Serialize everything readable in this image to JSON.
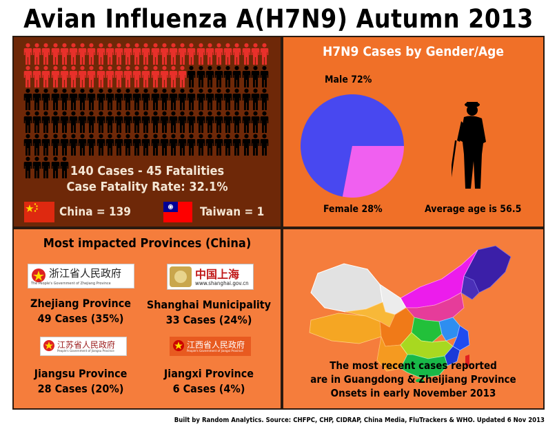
{
  "title": "Avian Influenza A(H7N9) Autumn 2013",
  "chart_data": [
    {
      "type": "pictogram",
      "total_cases": 140,
      "fatalities": 45,
      "summary_line1": "140 Cases - 45 Fatalities",
      "summary_line2": "Case Fatality Rate: 32.1%",
      "by_region": [
        {
          "label": "China = 139",
          "value": 139
        },
        {
          "label": "Taiwan = 1",
          "value": 1
        }
      ],
      "colors": {
        "fatality": "#e8302a",
        "case": "#000000"
      }
    },
    {
      "type": "pie",
      "title": "H7N9 Cases by Gender/Age",
      "slices": [
        {
          "label": "Male 72%",
          "value": 72,
          "color": "#4848f0"
        },
        {
          "label": "Female 28%",
          "value": 28,
          "color": "#f060f0"
        }
      ],
      "note": "Average age is 56.5"
    },
    {
      "type": "table",
      "title": "Most impacted Provinces (China)",
      "rows": [
        {
          "name": "Zhejiang Province",
          "cases_text": "49 Cases (35%)",
          "cases": 49,
          "percent": 35,
          "logo_text": "浙江省人民政府",
          "logo_sub": "The People's Government of Zhejiang Province"
        },
        {
          "name": "Shanghai Municipality",
          "cases_text": "33 Cases (24%)",
          "cases": 33,
          "percent": 24,
          "logo_text": "中国上海",
          "logo_sub": "www.shanghai.gov.cn"
        },
        {
          "name": "Jiangsu Province",
          "cases_text": "28 Cases (20%)",
          "cases": 28,
          "percent": 20,
          "logo_text": "江苏省人民政府",
          "logo_sub": "People's Government of Jiangsu Province"
        },
        {
          "name": "Jiangxi Province",
          "cases_text": "6 Cases (4%)",
          "cases": 6,
          "percent": 4,
          "logo_text": "江西省人民政府",
          "logo_sub": "People's Government of Jiangxi Province"
        }
      ]
    }
  ],
  "map": {
    "note_line1": "The most recent cases reported",
    "note_line2": "are in Guangdong & Zheijiang Province",
    "note_line3": "Onsets in early November 2013"
  },
  "source": "Built by Random Analytics. Source: CHFPC, CHP, CIDRAP, China Media, FluTrackers & WHO. Updated 6 Nov 2013"
}
